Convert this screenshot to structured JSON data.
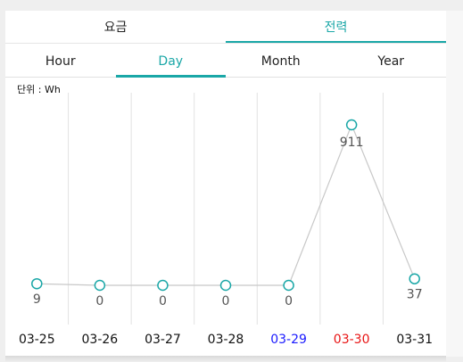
{
  "top_tabs": [
    {
      "label": "요금",
      "active": false
    },
    {
      "label": "전력",
      "active": true
    }
  ],
  "period_tabs": [
    {
      "label": "Hour",
      "active": false
    },
    {
      "label": "Day",
      "active": true
    },
    {
      "label": "Month",
      "active": false
    },
    {
      "label": "Year",
      "active": false
    }
  ],
  "unit_label": "단위 : Wh",
  "colors": {
    "accent": "#1aa7a7",
    "saturday": "#1a1aff",
    "sunday": "#e81414",
    "weekday": "#111111",
    "line": "#c8c8c8",
    "grid": "#e2e2e2"
  },
  "chart_data": {
    "type": "line",
    "x": [
      "03-25",
      "03-26",
      "03-27",
      "03-28",
      "03-29",
      "03-30",
      "03-31"
    ],
    "values": [
      9,
      0,
      0,
      0,
      0,
      911,
      37
    ],
    "day_types": [
      "weekday",
      "weekday",
      "weekday",
      "weekday",
      "saturday",
      "sunday",
      "weekday"
    ],
    "ylabel": "단위 : Wh",
    "grid": true
  }
}
